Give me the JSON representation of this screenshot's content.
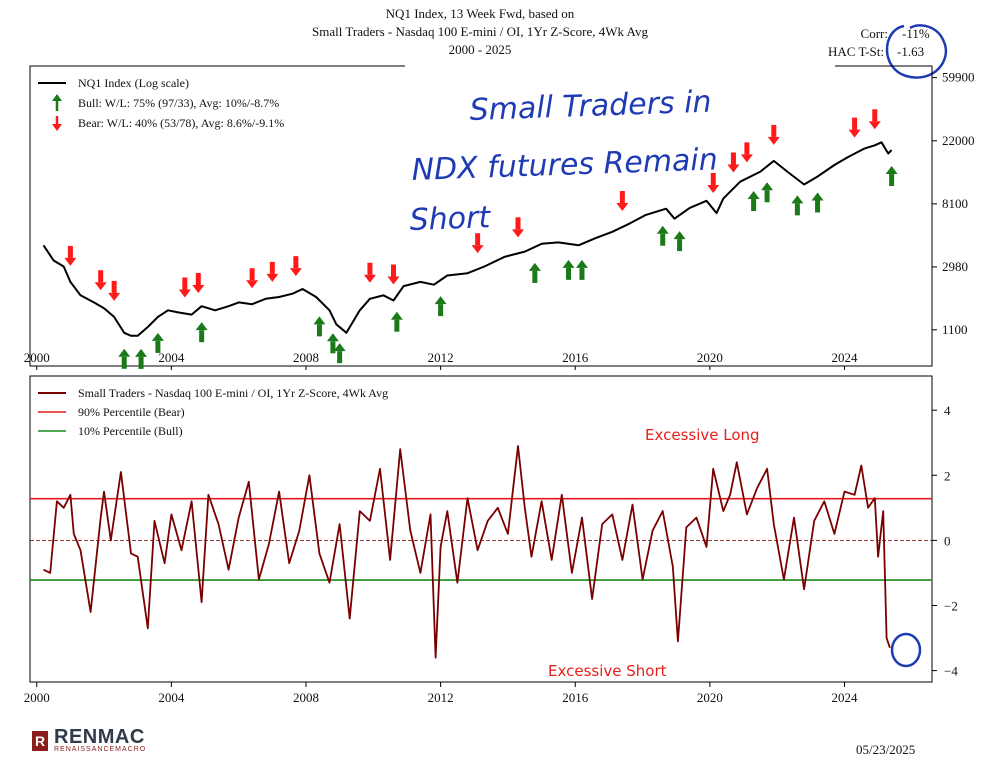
{
  "title": {
    "line1": "NQ1 Index, 13 Week Fwd, based on",
    "line2": "Small Traders - Nasdaq 100 E-mini / OI, 1Yr Z-Score, 4Wk Avg",
    "line3": "2000 - 2025"
  },
  "stats": {
    "corr_label": "Corr:",
    "corr_value": "-11%",
    "hac_label": "HAC T-St:",
    "hac_value": "-1.63"
  },
  "annotations": {
    "handwritten_line1": "Small Traders in",
    "handwritten_line2": "NDX futures Remain",
    "handwritten_line3": "Short",
    "excessive_long": "Excessive Long",
    "excessive_short": "Excessive Short"
  },
  "footer": {
    "brand": "RENMAC",
    "brand_sub": "RENAISSANCEMACRO",
    "brand_mark": "R",
    "date": "05/23/2025"
  },
  "colors": {
    "index_line": "#000000",
    "zscore_line": "#7a0000",
    "bear_line": "#e31a1c",
    "bull_line": "#1a8a1a",
    "bull_arrow": "#1a7a1a",
    "bear_arrow": "#ff1a1a",
    "handwriting": "#1f3bb3",
    "annotation_red": "#e8201b"
  },
  "chart_data": [
    {
      "type": "line",
      "legend": [
        {
          "label": "NQ1 Index (Log scale)",
          "marker": "line"
        },
        {
          "label": "Bull:  W/L: 75% (97/33), Avg: 10%/-8.7%",
          "marker": "bull-arrow"
        },
        {
          "label": "Bear:  W/L: 40% (53/78), Avg: 8.6%/-9.1%",
          "marker": "bear-arrow"
        }
      ],
      "legend_position": "top-left",
      "y_scale": "log",
      "y_ticks": [
        1100,
        2980,
        8100,
        22000,
        59900
      ],
      "y_tick_labels": [
        "1100",
        "2980",
        "8100",
        "22000",
        "59900"
      ],
      "ylim": [
        620,
        72000
      ],
      "x_ticks": [
        2000,
        2004,
        2008,
        2012,
        2016,
        2020,
        2024
      ],
      "xlim": [
        1999.8,
        2026.6
      ],
      "series": [
        {
          "name": "NQ1 Index (Log scale)",
          "x": [
            2000.2,
            2000.5,
            2000.8,
            2001.0,
            2001.3,
            2001.7,
            2002.0,
            2002.3,
            2002.6,
            2002.8,
            2003.0,
            2003.3,
            2003.6,
            2003.9,
            2004.2,
            2004.6,
            2004.9,
            2005.3,
            2005.7,
            2006.0,
            2006.4,
            2006.8,
            2007.2,
            2007.6,
            2007.9,
            2008.3,
            2008.7,
            2008.9,
            2009.2,
            2009.6,
            2009.9,
            2010.3,
            2010.6,
            2010.9,
            2011.4,
            2011.8,
            2012.2,
            2012.8,
            2013.3,
            2013.9,
            2014.5,
            2015.0,
            2015.5,
            2016.1,
            2016.6,
            2017.1,
            2017.6,
            2018.1,
            2018.7,
            2018.95,
            2019.4,
            2019.9,
            2020.2,
            2020.4,
            2020.9,
            2021.5,
            2021.9,
            2022.3,
            2022.8,
            2023.2,
            2023.7,
            2024.1,
            2024.6,
            2024.9,
            2025.1,
            2025.3,
            2025.4
          ],
          "y": [
            4200,
            3300,
            3000,
            2350,
            1900,
            1700,
            1550,
            1350,
            1050,
            1000,
            1000,
            1150,
            1350,
            1500,
            1450,
            1400,
            1600,
            1500,
            1600,
            1700,
            1650,
            1800,
            1850,
            1950,
            2100,
            1850,
            1500,
            1200,
            1050,
            1500,
            1800,
            1900,
            1750,
            2200,
            2350,
            2250,
            2600,
            2700,
            3000,
            3500,
            3800,
            4300,
            4400,
            4200,
            4700,
            5200,
            5900,
            6800,
            7500,
            6400,
            7600,
            8500,
            7000,
            8800,
            11500,
            13500,
            16000,
            13500,
            11000,
            12500,
            15000,
            17000,
            19500,
            20500,
            21500,
            18000,
            19000
          ],
          "color": "#000000"
        }
      ],
      "signals_bull_x": [
        2002.6,
        2003.1,
        2003.6,
        2004.9,
        2008.4,
        2008.8,
        2009.0,
        2010.7,
        2012.0,
        2014.8,
        2015.8,
        2016.2,
        2018.6,
        2019.1,
        2021.3,
        2021.7,
        2022.6,
        2023.2,
        2025.4
      ],
      "signals_bear_x": [
        2001.0,
        2001.9,
        2002.3,
        2004.4,
        2004.8,
        2006.4,
        2007.0,
        2007.7,
        2009.9,
        2010.6,
        2013.1,
        2014.3,
        2017.4,
        2020.1,
        2020.7,
        2021.1,
        2021.9,
        2024.3,
        2024.9
      ]
    },
    {
      "type": "line",
      "legend": [
        {
          "label": "Small Traders - Nasdaq 100 E-mini / OI, 1Yr Z-Score, 4Wk Avg",
          "marker": "line"
        },
        {
          "label": "90% Percentile (Bear)",
          "marker": "line"
        },
        {
          "label": "10% Percentile (Bull)",
          "marker": "line"
        }
      ],
      "legend_position": "top-left",
      "y_ticks": [
        -4,
        -2,
        0,
        2,
        4
      ],
      "ylim": [
        -4.35,
        5.05
      ],
      "x_ticks": [
        2000,
        2004,
        2008,
        2012,
        2016,
        2020,
        2024
      ],
      "xlim": [
        1999.8,
        2026.6
      ],
      "bear_threshold": 1.28,
      "bull_threshold": -1.22,
      "zero_line": 0,
      "series": [
        {
          "name": "Small Traders - Nasdaq 100 E-mini / OI, 1Yr Z-Score, 4Wk Avg",
          "x": [
            2000.2,
            2000.4,
            2000.6,
            2000.8,
            2001.0,
            2001.1,
            2001.3,
            2001.6,
            2001.9,
            2002.0,
            2002.2,
            2002.5,
            2002.8,
            2003.0,
            2003.3,
            2003.5,
            2003.8,
            2004.0,
            2004.3,
            2004.6,
            2004.9,
            2005.1,
            2005.4,
            2005.7,
            2006.0,
            2006.3,
            2006.6,
            2006.9,
            2007.2,
            2007.5,
            2007.8,
            2008.1,
            2008.4,
            2008.7,
            2009.0,
            2009.3,
            2009.6,
            2009.9,
            2010.2,
            2010.5,
            2010.8,
            2011.1,
            2011.4,
            2011.7,
            2011.85,
            2012.0,
            2012.2,
            2012.5,
            2012.8,
            2013.1,
            2013.4,
            2013.7,
            2014.0,
            2014.3,
            2014.5,
            2014.7,
            2015.0,
            2015.3,
            2015.6,
            2015.9,
            2016.2,
            2016.5,
            2016.8,
            2017.1,
            2017.4,
            2017.7,
            2018.0,
            2018.3,
            2018.6,
            2018.9,
            2019.05,
            2019.3,
            2019.6,
            2019.9,
            2020.1,
            2020.4,
            2020.6,
            2020.8,
            2021.1,
            2021.4,
            2021.7,
            2021.9,
            2022.2,
            2022.5,
            2022.8,
            2023.1,
            2023.4,
            2023.7,
            2024.0,
            2024.3,
            2024.5,
            2024.7,
            2024.9,
            2025.0,
            2025.15,
            2025.25,
            2025.35
          ],
          "y": [
            -0.9,
            -1.0,
            1.2,
            1.0,
            1.4,
            0.2,
            -0.3,
            -2.2,
            0.7,
            1.5,
            0.0,
            2.1,
            -0.4,
            -0.5,
            -2.7,
            0.6,
            -0.7,
            0.8,
            -0.3,
            1.2,
            -1.9,
            1.4,
            0.5,
            -0.9,
            0.7,
            1.8,
            -1.2,
            -0.1,
            1.5,
            -0.7,
            0.3,
            2.0,
            -0.4,
            -1.3,
            0.5,
            -2.4,
            0.9,
            0.6,
            2.2,
            -0.6,
            2.8,
            0.3,
            -1.0,
            0.8,
            -3.6,
            -0.2,
            0.9,
            -1.3,
            1.3,
            -0.3,
            0.6,
            1.0,
            0.2,
            2.9,
            1.0,
            -0.5,
            1.2,
            -0.6,
            1.4,
            -1.0,
            0.7,
            -1.8,
            0.5,
            0.8,
            -0.6,
            1.1,
            -1.2,
            0.3,
            0.9,
            -0.8,
            -3.1,
            0.4,
            0.7,
            -0.2,
            2.2,
            0.9,
            1.4,
            2.4,
            0.8,
            1.6,
            2.2,
            0.5,
            -1.2,
            0.7,
            -1.5,
            0.6,
            1.2,
            0.2,
            1.5,
            1.4,
            2.3,
            1.0,
            1.3,
            -0.5,
            0.9,
            -3.0,
            -3.3
          ],
          "color": "#7a0000"
        }
      ]
    }
  ]
}
